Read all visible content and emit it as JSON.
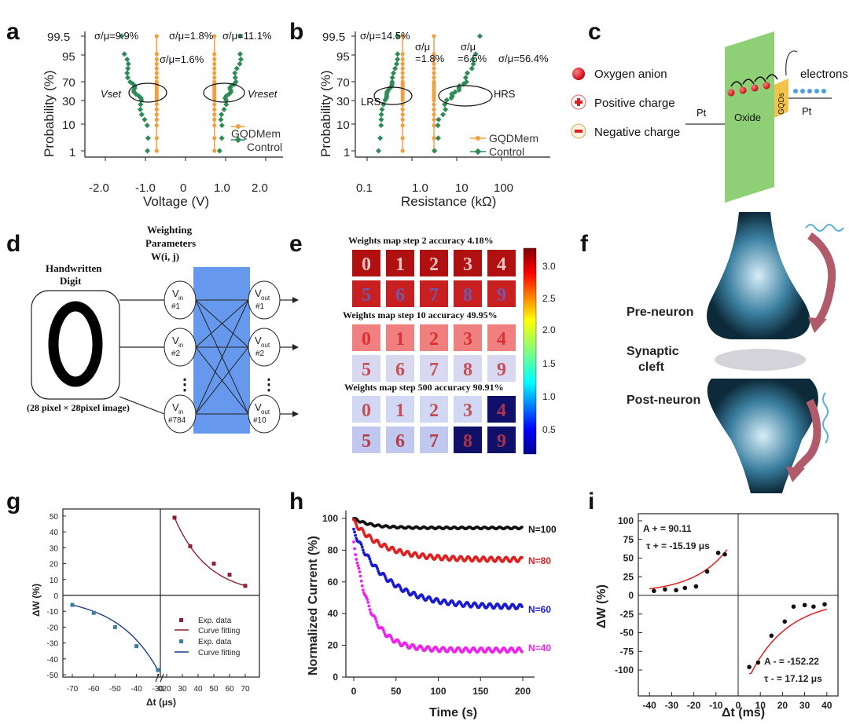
{
  "panel_labels": [
    "a",
    "b",
    "c",
    "d",
    "e",
    "f",
    "g",
    "h",
    "i"
  ],
  "colors": {
    "orange": "#f0a040",
    "green": "#2e8b57",
    "red": "#e02020",
    "black": "#111111",
    "blue": "#1a1ad0",
    "magenta": "#ee22ee",
    "teal": "#3b7fa0",
    "navy": "#1f3c88",
    "maroon": "#8b2030"
  },
  "chart_data": [
    {
      "id": "a",
      "type": "scatter",
      "xlabel": "Voltage (V)",
      "ylabel": "Probability (%)",
      "xticks": [
        "-2.0",
        "-1.0",
        "0",
        "1.0",
        "2.0"
      ],
      "yticks": [
        "1",
        "10",
        "30",
        "70",
        "95",
        "99.5"
      ],
      "legend": [
        "GQDMem",
        "Control"
      ],
      "annotations": {
        "s1": "σ/μ=9.9%",
        "s2": "σ/μ=1.8%",
        "s3": "σ/μ=11.1%",
        "s4": "σ/μ=1.6%",
        "set": "Vset",
        "reset": "Vreset"
      },
      "series": [
        {
          "name": "GQDMem set",
          "color": "orange",
          "x": -0.72
        },
        {
          "name": "GQDMem reset",
          "color": "orange",
          "x": 0.72
        },
        {
          "name": "Control set",
          "color": "green",
          "x_range": [
            -1.55,
            -0.95
          ]
        },
        {
          "name": "Control reset",
          "color": "green",
          "x_range": [
            0.85,
            1.4
          ]
        }
      ]
    },
    {
      "id": "b",
      "type": "scatter",
      "xlabel": "Resistance (kΩ)",
      "ylabel": "Probability (%)",
      "xticks": [
        "0.1",
        "1.0",
        "10",
        "100"
      ],
      "yticks": [
        "1",
        "10",
        "30",
        "70",
        "95",
        "99.5"
      ],
      "legend": [
        "GQDMem",
        "Control"
      ],
      "annotations": {
        "s1": "σ/μ=14.5%",
        "s2a": "σ/μ",
        "s2b": "=1.8%",
        "s3a": "σ/μ",
        "s3b": "=6.5%",
        "s4": "σ/μ=56.4%",
        "lrs": "LRS",
        "hrs": "HRS"
      }
    },
    {
      "id": "g",
      "type": "scatter",
      "xlabel": "Δt (μs)",
      "ylabel": "ΔW (%)",
      "xticks": [
        "-70",
        "-60",
        "-50",
        "-40",
        "-30",
        "0",
        "20",
        "30",
        "40",
        "50",
        "60",
        "70"
      ],
      "yticks": [
        "50",
        "40",
        "30",
        "20",
        "10",
        "0",
        "-10",
        "-20",
        "-30",
        "-40",
        "-50"
      ],
      "legend": [
        "Exp. data",
        "Curve fitting",
        "Exp. data",
        "Curve fitting"
      ],
      "series": [
        {
          "name": "positive",
          "x": [
            25,
            35,
            50,
            60,
            70
          ],
          "y": [
            49,
            31,
            20,
            13,
            6
          ]
        },
        {
          "name": "negative",
          "x": [
            -70,
            -60,
            -50,
            -40,
            -30
          ],
          "y": [
            -6,
            -11,
            -20,
            -32,
            -47
          ]
        }
      ]
    },
    {
      "id": "h",
      "type": "scatter",
      "xlabel": "Time (s)",
      "ylabel": "Normalized Current (%)",
      "xticks": [
        "0",
        "50",
        "100",
        "150",
        "200"
      ],
      "yticks": [
        "0",
        "20",
        "40",
        "60",
        "80",
        "100"
      ],
      "xlim": [
        0,
        200
      ],
      "ylim": [
        0,
        100
      ],
      "series": [
        {
          "name": "N=100",
          "color": "black",
          "start": 100,
          "end": 94,
          "tau": 20
        },
        {
          "name": "N=80",
          "color": "red",
          "start": 98,
          "end": 74,
          "tau": 35
        },
        {
          "name": "N=60",
          "color": "blue",
          "start": 92,
          "end": 44,
          "tau": 40
        },
        {
          "name": "N=40",
          "color": "magenta",
          "start": 85,
          "end": 17,
          "tau": 20
        }
      ]
    },
    {
      "id": "i",
      "type": "scatter",
      "xlabel": "Δt (ms)",
      "ylabel": "ΔW (%)",
      "xticks": [
        "-40",
        "-30",
        "-20",
        "-10",
        "0",
        "10",
        "20",
        "30",
        "40"
      ],
      "yticks": [
        "100",
        "75",
        "50",
        "25",
        "0",
        "-25",
        "-50",
        "-75",
        "-100"
      ],
      "xlim": [
        -45,
        45
      ],
      "ylim": [
        -110,
        110
      ],
      "annotations": {
        "ap": "A + = 90.11",
        "tp": "τ + = -15.19 μs",
        "am": "A - = -152.22",
        "tm": "τ - = 17.12 μs"
      },
      "series": [
        {
          "name": "pos",
          "x": [
            -38,
            -33,
            -28,
            -24,
            -19,
            -14,
            -9,
            -6
          ],
          "y": [
            6,
            8,
            7,
            10,
            12,
            32,
            57,
            55
          ]
        },
        {
          "name": "neg",
          "x": [
            5,
            9,
            15,
            21,
            25,
            30,
            34,
            39
          ],
          "y": [
            -96,
            -90,
            -54,
            -35,
            -15,
            -13,
            -15,
            -12
          ]
        }
      ]
    }
  ],
  "panel_c": {
    "oxygen": "Oxygen anion",
    "positive": "Positive charge",
    "negative": "Negative charge",
    "pt_left": "Pt",
    "pt_right": "Pt",
    "oxide": "Oxide",
    "gqds": "GQDs",
    "electrons": "electrons"
  },
  "panel_d": {
    "weighting_1": "Weighting",
    "weighting_2": "Parameters",
    "weighting_3": "W(i, j)",
    "handwritten_1": "Handwritten",
    "handwritten_2": "Digit",
    "caption": "(28 pixel × 28pixel image)",
    "dots": "⋮",
    "vin": [
      "#1",
      "#2",
      "#784"
    ],
    "vout": [
      "#1",
      "#2",
      "#10"
    ]
  },
  "panel_e": {
    "step2": "Weights map step 2 accuracy 4.18%",
    "step10": "Weights map step 10 accuracy 49.95%",
    "step500": "Weights map step 500 accuracy 90.91%",
    "colorbar": [
      "3.0",
      "2.5",
      "2.0",
      "1.5",
      "1.0",
      "0.5"
    ],
    "digits": [
      "0",
      "1",
      "2",
      "3",
      "4",
      "5",
      "6",
      "7",
      "8",
      "9"
    ]
  },
  "panel_f": {
    "pre": "Pre-neuron",
    "syn1": "Synaptic",
    "syn2": "cleft",
    "post": "Post-neuron"
  }
}
